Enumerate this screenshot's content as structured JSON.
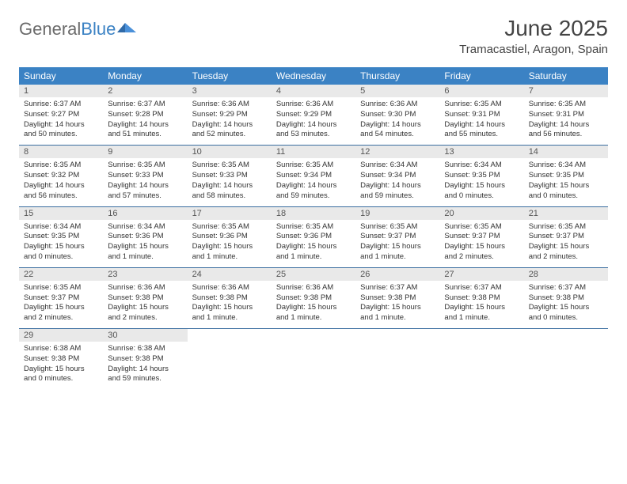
{
  "brand": {
    "part1": "General",
    "part2": "Blue"
  },
  "title": "June 2025",
  "location": "Tramacastiel, Aragon, Spain",
  "colors": {
    "header_bg": "#3b82c4",
    "header_text": "#ffffff",
    "daynum_bg": "#e9e9e9",
    "week_border": "#3b6ea0",
    "text": "#333333",
    "logo_gray": "#6b6b6b",
    "logo_blue": "#3b82c4",
    "page_bg": "#ffffff"
  },
  "weekdays": [
    "Sunday",
    "Monday",
    "Tuesday",
    "Wednesday",
    "Thursday",
    "Friday",
    "Saturday"
  ],
  "weeks": [
    [
      {
        "n": "1",
        "sr": "6:37 AM",
        "ss": "9:27 PM",
        "dl": "14 hours and 50 minutes."
      },
      {
        "n": "2",
        "sr": "6:37 AM",
        "ss": "9:28 PM",
        "dl": "14 hours and 51 minutes."
      },
      {
        "n": "3",
        "sr": "6:36 AM",
        "ss": "9:29 PM",
        "dl": "14 hours and 52 minutes."
      },
      {
        "n": "4",
        "sr": "6:36 AM",
        "ss": "9:29 PM",
        "dl": "14 hours and 53 minutes."
      },
      {
        "n": "5",
        "sr": "6:36 AM",
        "ss": "9:30 PM",
        "dl": "14 hours and 54 minutes."
      },
      {
        "n": "6",
        "sr": "6:35 AM",
        "ss": "9:31 PM",
        "dl": "14 hours and 55 minutes."
      },
      {
        "n": "7",
        "sr": "6:35 AM",
        "ss": "9:31 PM",
        "dl": "14 hours and 56 minutes."
      }
    ],
    [
      {
        "n": "8",
        "sr": "6:35 AM",
        "ss": "9:32 PM",
        "dl": "14 hours and 56 minutes."
      },
      {
        "n": "9",
        "sr": "6:35 AM",
        "ss": "9:33 PM",
        "dl": "14 hours and 57 minutes."
      },
      {
        "n": "10",
        "sr": "6:35 AM",
        "ss": "9:33 PM",
        "dl": "14 hours and 58 minutes."
      },
      {
        "n": "11",
        "sr": "6:35 AM",
        "ss": "9:34 PM",
        "dl": "14 hours and 59 minutes."
      },
      {
        "n": "12",
        "sr": "6:34 AM",
        "ss": "9:34 PM",
        "dl": "14 hours and 59 minutes."
      },
      {
        "n": "13",
        "sr": "6:34 AM",
        "ss": "9:35 PM",
        "dl": "15 hours and 0 minutes."
      },
      {
        "n": "14",
        "sr": "6:34 AM",
        "ss": "9:35 PM",
        "dl": "15 hours and 0 minutes."
      }
    ],
    [
      {
        "n": "15",
        "sr": "6:34 AM",
        "ss": "9:35 PM",
        "dl": "15 hours and 0 minutes."
      },
      {
        "n": "16",
        "sr": "6:34 AM",
        "ss": "9:36 PM",
        "dl": "15 hours and 1 minute."
      },
      {
        "n": "17",
        "sr": "6:35 AM",
        "ss": "9:36 PM",
        "dl": "15 hours and 1 minute."
      },
      {
        "n": "18",
        "sr": "6:35 AM",
        "ss": "9:36 PM",
        "dl": "15 hours and 1 minute."
      },
      {
        "n": "19",
        "sr": "6:35 AM",
        "ss": "9:37 PM",
        "dl": "15 hours and 1 minute."
      },
      {
        "n": "20",
        "sr": "6:35 AM",
        "ss": "9:37 PM",
        "dl": "15 hours and 2 minutes."
      },
      {
        "n": "21",
        "sr": "6:35 AM",
        "ss": "9:37 PM",
        "dl": "15 hours and 2 minutes."
      }
    ],
    [
      {
        "n": "22",
        "sr": "6:35 AM",
        "ss": "9:37 PM",
        "dl": "15 hours and 2 minutes."
      },
      {
        "n": "23",
        "sr": "6:36 AM",
        "ss": "9:38 PM",
        "dl": "15 hours and 2 minutes."
      },
      {
        "n": "24",
        "sr": "6:36 AM",
        "ss": "9:38 PM",
        "dl": "15 hours and 1 minute."
      },
      {
        "n": "25",
        "sr": "6:36 AM",
        "ss": "9:38 PM",
        "dl": "15 hours and 1 minute."
      },
      {
        "n": "26",
        "sr": "6:37 AM",
        "ss": "9:38 PM",
        "dl": "15 hours and 1 minute."
      },
      {
        "n": "27",
        "sr": "6:37 AM",
        "ss": "9:38 PM",
        "dl": "15 hours and 1 minute."
      },
      {
        "n": "28",
        "sr": "6:37 AM",
        "ss": "9:38 PM",
        "dl": "15 hours and 0 minutes."
      }
    ],
    [
      {
        "n": "29",
        "sr": "6:38 AM",
        "ss": "9:38 PM",
        "dl": "15 hours and 0 minutes."
      },
      {
        "n": "30",
        "sr": "6:38 AM",
        "ss": "9:38 PM",
        "dl": "14 hours and 59 minutes."
      },
      null,
      null,
      null,
      null,
      null
    ]
  ],
  "labels": {
    "sunrise": "Sunrise:",
    "sunset": "Sunset:",
    "daylight": "Daylight:"
  }
}
